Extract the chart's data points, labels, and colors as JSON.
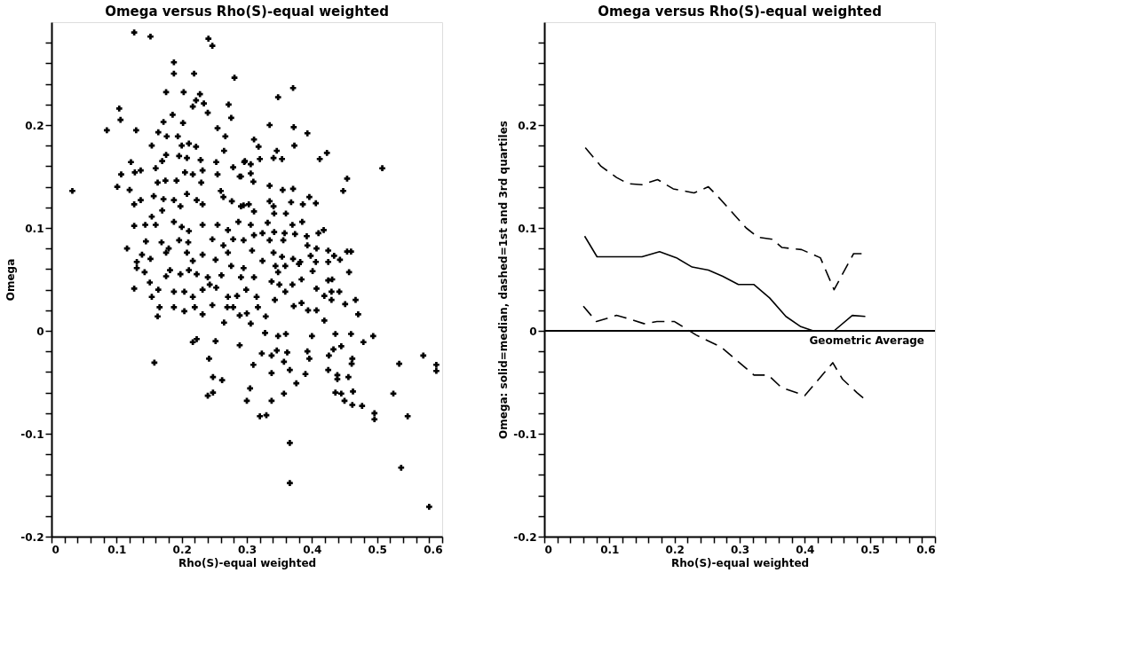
{
  "chart_data": [
    {
      "type": "scatter",
      "title": "Omega versus Rho(S)-equal weighted",
      "xlabel": "Rho(S)-equal weighted",
      "ylabel": "Omega",
      "color": "#000000",
      "marker": "cross",
      "x": [
        0.127,
        0.152,
        0.241,
        0.247,
        0.188,
        0.188,
        0.219,
        0.281,
        0.176,
        0.203,
        0.228,
        0.222,
        0.234,
        0.217,
        0.24,
        0.272,
        0.276,
        0.104,
        0.106,
        0.085,
        0.13,
        0.032,
        0.186,
        0.172,
        0.202,
        0.255,
        0.267,
        0.164,
        0.177,
        0.194,
        0.154,
        0.211,
        0.222,
        0.2,
        0.265,
        0.176,
        0.196,
        0.208,
        0.229,
        0.253,
        0.297,
        0.17,
        0.122,
        0.107,
        0.128,
        0.137,
        0.16,
        0.101,
        0.12,
        0.205,
        0.217,
        0.232,
        0.255,
        0.279,
        0.289,
        0.175,
        0.192,
        0.23,
        0.163,
        0.157,
        0.172,
        0.188,
        0.208,
        0.223,
        0.232,
        0.26,
        0.264,
        0.277,
        0.291,
        0.127,
        0.137,
        0.198,
        0.17,
        0.154,
        0.188,
        0.2,
        0.211,
        0.127,
        0.144,
        0.16,
        0.232,
        0.255,
        0.271,
        0.287,
        0.145,
        0.169,
        0.18,
        0.196,
        0.21,
        0.247,
        0.264,
        0.279,
        0.295,
        0.116,
        0.139,
        0.152,
        0.176,
        0.208,
        0.232,
        0.252,
        0.271,
        0.131,
        0.217,
        0.276,
        0.371,
        0.348,
        0.335,
        0.372,
        0.393,
        0.311,
        0.318,
        0.373,
        0.346,
        0.341,
        0.354,
        0.32,
        0.412,
        0.423,
        0.508,
        0.454,
        0.448,
        0.296,
        0.306,
        0.306,
        0.31,
        0.291,
        0.335,
        0.355,
        0.371,
        0.396,
        0.406,
        0.386,
        0.368,
        0.335,
        0.341,
        0.342,
        0.311,
        0.303,
        0.295,
        0.36,
        0.306,
        0.332,
        0.37,
        0.385,
        0.342,
        0.358,
        0.374,
        0.392,
        0.41,
        0.418,
        0.311,
        0.324,
        0.335,
        0.356,
        0.393,
        0.407,
        0.425,
        0.434,
        0.443,
        0.454,
        0.46,
        0.308,
        0.341,
        0.354,
        0.371,
        0.398,
        0.406,
        0.425,
        0.382,
        0.324,
        0.295,
        0.457,
        0.348,
        0.401,
        0.143,
        0.131,
        0.344,
        0.359,
        0.38,
        0.176,
        0.182,
        0.198,
        0.211,
        0.223,
        0.24,
        0.261,
        0.291,
        0.311,
        0.338,
        0.35,
        0.37,
        0.384,
        0.425,
        0.431,
        0.127,
        0.151,
        0.154,
        0.164,
        0.188,
        0.204,
        0.217,
        0.232,
        0.243,
        0.253,
        0.271,
        0.285,
        0.299,
        0.315,
        0.359,
        0.407,
        0.419,
        0.43,
        0.442,
        0.467,
        0.166,
        0.188,
        0.204,
        0.22,
        0.232,
        0.247,
        0.27,
        0.279,
        0.289,
        0.3,
        0.317,
        0.343,
        0.372,
        0.384,
        0.394,
        0.407,
        0.43,
        0.451,
        0.471,
        0.163,
        0.265,
        0.306,
        0.329,
        0.419,
        0.328,
        0.348,
        0.36,
        0.4,
        0.436,
        0.46,
        0.494,
        0.479,
        0.217,
        0.223,
        0.252,
        0.289,
        0.158,
        0.242,
        0.323,
        0.338,
        0.346,
        0.362,
        0.393,
        0.396,
        0.426,
        0.433,
        0.445,
        0.462,
        0.461,
        0.534,
        0.571,
        0.591,
        0.591,
        0.31,
        0.357,
        0.366,
        0.338,
        0.39,
        0.425,
        0.439,
        0.456,
        0.439,
        0.248,
        0.262,
        0.376,
        0.305,
        0.24,
        0.248,
        0.357,
        0.436,
        0.445,
        0.463,
        0.525,
        0.3,
        0.338,
        0.45,
        0.462,
        0.477,
        0.496,
        0.496,
        0.547,
        0.32,
        0.33,
        0.366,
        0.537,
        0.366,
        0.58
      ],
      "values": [
        0.29,
        0.286,
        0.284,
        0.277,
        0.261,
        0.25,
        0.25,
        0.246,
        0.232,
        0.232,
        0.23,
        0.224,
        0.221,
        0.218,
        0.212,
        0.22,
        0.207,
        0.216,
        0.205,
        0.195,
        0.195,
        0.136,
        0.21,
        0.203,
        0.202,
        0.197,
        0.189,
        0.193,
        0.189,
        0.189,
        0.18,
        0.182,
        0.179,
        0.18,
        0.175,
        0.171,
        0.17,
        0.168,
        0.166,
        0.164,
        0.165,
        0.165,
        0.164,
        0.152,
        0.154,
        0.156,
        0.158,
        0.14,
        0.137,
        0.154,
        0.152,
        0.156,
        0.152,
        0.159,
        0.15,
        0.146,
        0.146,
        0.144,
        0.144,
        0.131,
        0.128,
        0.127,
        0.133,
        0.127,
        0.123,
        0.136,
        0.13,
        0.126,
        0.121,
        0.123,
        0.127,
        0.121,
        0.117,
        0.111,
        0.106,
        0.101,
        0.097,
        0.102,
        0.103,
        0.103,
        0.103,
        0.103,
        0.098,
        0.106,
        0.087,
        0.086,
        0.08,
        0.088,
        0.086,
        0.089,
        0.083,
        0.089,
        0.088,
        0.08,
        0.074,
        0.07,
        0.076,
        0.076,
        0.074,
        0.069,
        0.076,
        0.067,
        0.068,
        0.063,
        0.236,
        0.227,
        0.2,
        0.198,
        0.192,
        0.186,
        0.179,
        0.18,
        0.175,
        0.168,
        0.167,
        0.167,
        0.167,
        0.173,
        0.158,
        0.148,
        0.136,
        0.164,
        0.162,
        0.153,
        0.145,
        0.15,
        0.141,
        0.137,
        0.138,
        0.13,
        0.124,
        0.123,
        0.125,
        0.126,
        0.121,
        0.114,
        0.116,
        0.123,
        0.122,
        0.114,
        0.103,
        0.105,
        0.103,
        0.106,
        0.096,
        0.095,
        0.094,
        0.092,
        0.095,
        0.098,
        0.093,
        0.095,
        0.088,
        0.088,
        0.083,
        0.08,
        0.078,
        0.073,
        0.069,
        0.077,
        0.077,
        0.078,
        0.076,
        0.072,
        0.07,
        0.073,
        0.067,
        0.067,
        0.067,
        0.068,
        0.061,
        0.057,
        0.057,
        0.058,
        0.057,
        0.061,
        0.063,
        0.063,
        0.065,
        0.053,
        0.059,
        0.055,
        0.059,
        0.055,
        0.052,
        0.054,
        0.052,
        0.052,
        0.048,
        0.045,
        0.045,
        0.05,
        0.049,
        0.05,
        0.041,
        0.047,
        0.033,
        0.04,
        0.038,
        0.038,
        0.033,
        0.04,
        0.045,
        0.042,
        0.033,
        0.034,
        0.04,
        0.033,
        0.038,
        0.041,
        0.034,
        0.038,
        0.038,
        0.03,
        0.023,
        0.023,
        0.019,
        0.023,
        0.016,
        0.025,
        0.023,
        0.023,
        0.015,
        0.017,
        0.023,
        0.03,
        0.024,
        0.027,
        0.02,
        0.02,
        0.03,
        0.026,
        0.016,
        0.014,
        0.008,
        0.007,
        0.014,
        0.01,
        -0.002,
        -0.005,
        -0.003,
        -0.005,
        -0.003,
        -0.003,
        -0.005,
        -0.011,
        -0.011,
        -0.008,
        -0.01,
        -0.014,
        -0.031,
        -0.027,
        -0.022,
        -0.024,
        -0.019,
        -0.021,
        -0.02,
        -0.027,
        -0.024,
        -0.018,
        -0.015,
        -0.027,
        -0.032,
        -0.032,
        -0.024,
        -0.033,
        -0.039,
        -0.033,
        -0.03,
        -0.038,
        -0.041,
        -0.042,
        -0.038,
        -0.043,
        -0.045,
        -0.047,
        -0.045,
        -0.048,
        -0.051,
        -0.056,
        -0.063,
        -0.06,
        -0.061,
        -0.06,
        -0.061,
        -0.059,
        -0.061,
        -0.068,
        -0.068,
        -0.068,
        -0.072,
        -0.073,
        -0.08,
        -0.086,
        -0.083,
        -0.083,
        -0.082,
        -0.109,
        -0.133,
        -0.148,
        -0.171
      ],
      "xlim": [
        0,
        0.6
      ],
      "ylim": [
        -0.2,
        0.3
      ],
      "xticks": [
        0,
        {
          "value": 0.02,
          "label": null
        },
        {
          "value": 0.04,
          "label": null
        },
        {
          "value": 0.06,
          "label": null
        },
        {
          "value": 0.08,
          "label": null
        },
        0.1,
        {
          "value": 0.12,
          "label": null
        },
        {
          "value": 0.14,
          "label": null
        },
        {
          "value": 0.16,
          "label": null
        },
        {
          "value": 0.18,
          "label": null
        },
        0.2,
        {
          "value": 0.22,
          "label": null
        },
        {
          "value": 0.24,
          "label": null
        },
        {
          "value": 0.26,
          "label": null
        },
        {
          "value": 0.28,
          "label": null
        },
        0.3,
        {
          "value": 0.32,
          "label": null
        },
        {
          "value": 0.34,
          "label": null
        },
        {
          "value": 0.36,
          "label": null
        },
        {
          "value": 0.38,
          "label": null
        },
        0.4,
        {
          "value": 0.42,
          "label": null
        },
        {
          "value": 0.44,
          "label": null
        },
        {
          "value": 0.46,
          "label": null
        },
        {
          "value": 0.48,
          "label": null
        },
        0.5,
        {
          "value": 0.52,
          "label": null
        },
        {
          "value": 0.54,
          "label": null
        },
        {
          "value": 0.56,
          "label": null
        },
        {
          "value": 0.58,
          "label": null
        },
        0.6
      ],
      "yticks": [
        -0.2,
        {
          "value": -0.18,
          "label": null
        },
        {
          "value": -0.16,
          "label": null
        },
        {
          "value": -0.14,
          "label": null
        },
        {
          "value": -0.12,
          "label": null
        },
        -0.1,
        {
          "value": -0.08,
          "label": null
        },
        {
          "value": -0.06,
          "label": null
        },
        {
          "value": -0.04,
          "label": null
        },
        {
          "value": -0.02,
          "label": null
        },
        0,
        {
          "value": 0.02,
          "label": null
        },
        {
          "value": 0.04,
          "label": null
        },
        {
          "value": 0.06,
          "label": null
        },
        {
          "value": 0.08,
          "label": null
        },
        0.1,
        {
          "value": 0.12,
          "label": null
        },
        {
          "value": 0.14,
          "label": null
        },
        {
          "value": 0.16,
          "label": null
        },
        {
          "value": 0.18,
          "label": null
        },
        0.2,
        {
          "value": 0.22,
          "label": null
        },
        {
          "value": 0.24,
          "label": null
        },
        {
          "value": 0.26,
          "label": null
        },
        {
          "value": 0.28,
          "label": null
        }
      ]
    },
    {
      "type": "line",
      "title": "Omega versus Rho(S)-equal weighted",
      "xlabel": "Rho(S)-equal weighted",
      "ylabel": "Omega: solid=median, dashed=1st and 3rd quartiles",
      "series": [
        {
          "color": "#000000",
          "line_style": "dashed",
          "x": [
            0.063,
            0.087,
            0.111,
            0.129,
            0.15,
            0.174,
            0.198,
            0.23,
            0.252,
            0.266,
            0.31,
            0.328,
            0.35,
            0.365,
            0.395,
            0.424,
            0.445,
            0.475,
            0.49
          ],
          "values": [
            0.178,
            0.16,
            0.149,
            0.143,
            0.142,
            0.147,
            0.138,
            0.134,
            0.14,
            0.131,
            0.1,
            0.091,
            0.089,
            0.081,
            0.079,
            0.071,
            0.04,
            0.075,
            0.075
          ]
        },
        {
          "color": "#000000",
          "line_style": "solid",
          "x": [
            0.062,
            0.081,
            0.15,
            0.177,
            0.203,
            0.227,
            0.252,
            0.274,
            0.298,
            0.322,
            0.346,
            0.371,
            0.394,
            0.413,
            0.445,
            0.473,
            0.493
          ],
          "values": [
            0.092,
            0.072,
            0.072,
            0.077,
            0.071,
            0.062,
            0.059,
            0.053,
            0.045,
            0.045,
            0.032,
            0.014,
            0.004,
            0.0,
            0.0,
            0.015,
            0.014
          ]
        },
        {
          "color": "#000000",
          "line_style": "dashed",
          "x": [
            0.06,
            0.08,
            0.111,
            0.123,
            0.153,
            0.173,
            0.2,
            0.233,
            0.272,
            0.322,
            0.344,
            0.364,
            0.4,
            0.443,
            0.458,
            0.48,
            0.493
          ],
          "values": [
            0.024,
            0.009,
            0.015,
            0.013,
            0.007,
            0.009,
            0.009,
            -0.004,
            -0.016,
            -0.043,
            -0.043,
            -0.055,
            -0.063,
            -0.031,
            -0.047,
            -0.06,
            -0.067
          ]
        }
      ],
      "ref_lines": [
        {
          "axis": "y",
          "value": 0,
          "label": "Geometric Average",
          "color": "#000000"
        }
      ],
      "xlim": [
        0,
        0.6
      ],
      "ylim": [
        -0.2,
        0.3
      ],
      "xticks": [
        0,
        {
          "value": 0.02,
          "label": null
        },
        {
          "value": 0.04,
          "label": null
        },
        {
          "value": 0.06,
          "label": null
        },
        {
          "value": 0.08,
          "label": null
        },
        0.1,
        {
          "value": 0.12,
          "label": null
        },
        {
          "value": 0.14,
          "label": null
        },
        {
          "value": 0.16,
          "label": null
        },
        {
          "value": 0.18,
          "label": null
        },
        0.2,
        {
          "value": 0.22,
          "label": null
        },
        {
          "value": 0.24,
          "label": null
        },
        {
          "value": 0.26,
          "label": null
        },
        {
          "value": 0.28,
          "label": null
        },
        0.3,
        {
          "value": 0.32,
          "label": null
        },
        {
          "value": 0.34,
          "label": null
        },
        {
          "value": 0.36,
          "label": null
        },
        {
          "value": 0.38,
          "label": null
        },
        0.4,
        {
          "value": 0.42,
          "label": null
        },
        {
          "value": 0.44,
          "label": null
        },
        {
          "value": 0.46,
          "label": null
        },
        {
          "value": 0.48,
          "label": null
        },
        0.5,
        {
          "value": 0.52,
          "label": null
        },
        {
          "value": 0.54,
          "label": null
        },
        {
          "value": 0.56,
          "label": null
        },
        {
          "value": 0.58,
          "label": null
        },
        0.6
      ],
      "yticks": [
        -0.2,
        {
          "value": -0.18,
          "label": null
        },
        {
          "value": -0.16,
          "label": null
        },
        {
          "value": -0.14,
          "label": null
        },
        {
          "value": -0.12,
          "label": null
        },
        -0.1,
        {
          "value": -0.08,
          "label": null
        },
        {
          "value": -0.06,
          "label": null
        },
        {
          "value": -0.04,
          "label": null
        },
        {
          "value": -0.02,
          "label": null
        },
        0,
        {
          "value": 0.02,
          "label": null
        },
        {
          "value": 0.04,
          "label": null
        },
        {
          "value": 0.06,
          "label": null
        },
        {
          "value": 0.08,
          "label": null
        },
        0.1,
        {
          "value": 0.12,
          "label": null
        },
        {
          "value": 0.14,
          "label": null
        },
        {
          "value": 0.16,
          "label": null
        },
        {
          "value": 0.18,
          "label": null
        },
        0.2,
        {
          "value": 0.22,
          "label": null
        },
        {
          "value": 0.24,
          "label": null
        },
        {
          "value": 0.26,
          "label": null
        },
        {
          "value": 0.28,
          "label": null
        }
      ]
    }
  ]
}
